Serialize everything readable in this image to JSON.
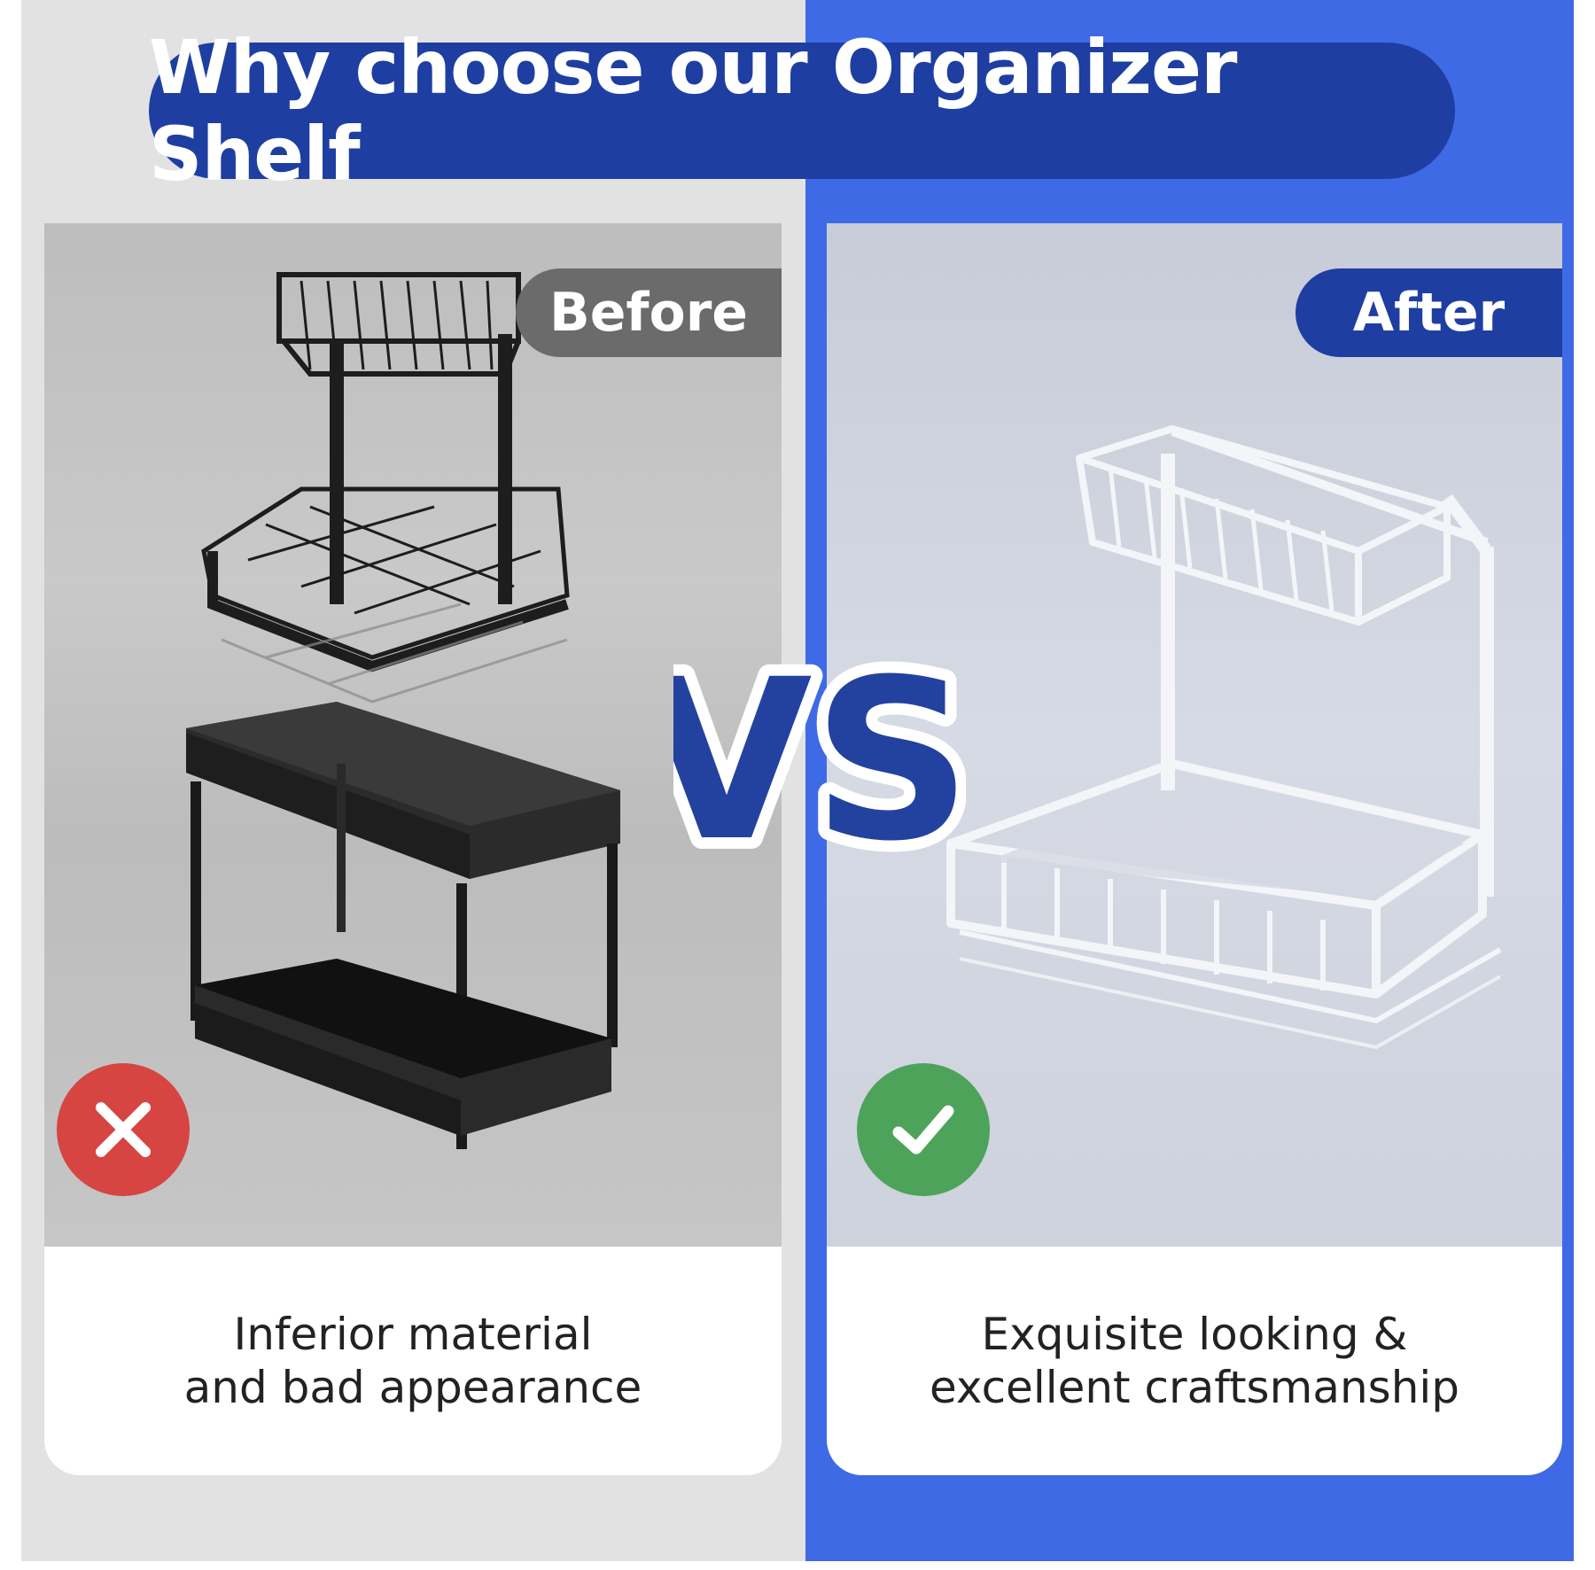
{
  "header": {
    "title": "Why choose our Organizer Shelf"
  },
  "vs_label": "VS",
  "before": {
    "tag": "Before",
    "caption_line1": "Inferior material",
    "caption_line2": "and bad appearance",
    "badge_icon": "cross-icon"
  },
  "after": {
    "tag": "After",
    "caption_line1": "Exquisite looking &",
    "caption_line2": "excellent craftsmanship",
    "badge_icon": "check-icon"
  },
  "colors": {
    "accent_blue": "#1f3ea2",
    "panel_blue": "#3f6ae6",
    "panel_gray": "#e2e2e2",
    "tag_gray": "#6b6b6b",
    "bad_red": "#d64542",
    "good_green": "#4ea35a"
  }
}
